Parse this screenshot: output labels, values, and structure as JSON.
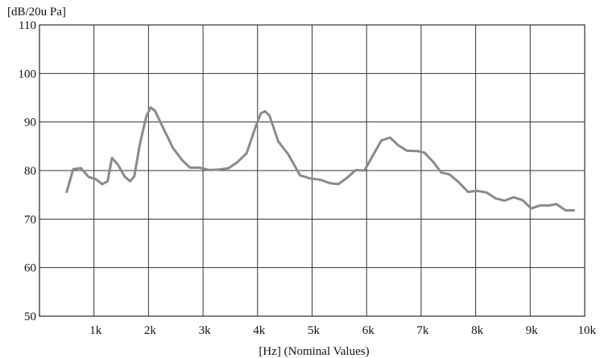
{
  "chart_data": {
    "type": "line",
    "ylabel": "[dB/20u Pa]",
    "xlabel": "[Hz] (Nominal Values)",
    "xlim": [
      0,
      10000
    ],
    "ylim": [
      50,
      110
    ],
    "grid": true,
    "x_ticks": [
      {
        "value": 1000,
        "label": "1k"
      },
      {
        "value": 2000,
        "label": "2k"
      },
      {
        "value": 3000,
        "label": "3k"
      },
      {
        "value": 4000,
        "label": "4k"
      },
      {
        "value": 5000,
        "label": "5k"
      },
      {
        "value": 6000,
        "label": "6k"
      },
      {
        "value": 7000,
        "label": "7k"
      },
      {
        "value": 8000,
        "label": "8k"
      },
      {
        "value": 9000,
        "label": "9k"
      },
      {
        "value": 10000,
        "label": "10k"
      }
    ],
    "y_ticks": [
      {
        "value": 50,
        "label": "50"
      },
      {
        "value": 60,
        "label": "60"
      },
      {
        "value": 70,
        "label": "70"
      },
      {
        "value": 80,
        "label": "80"
      },
      {
        "value": 90,
        "label": "90"
      },
      {
        "value": 100,
        "label": "100"
      },
      {
        "value": 110,
        "label": "110"
      }
    ],
    "series": [
      {
        "color": "#8a8a8a",
        "x": [
          500,
          620,
          760,
          900,
          1040,
          1150,
          1250,
          1330,
          1440,
          1560,
          1660,
          1740,
          1840,
          1960,
          2040,
          2120,
          2280,
          2450,
          2620,
          2760,
          2940,
          3120,
          3300,
          3470,
          3640,
          3800,
          3960,
          4060,
          4140,
          4220,
          4380,
          4560,
          4780,
          4960,
          5150,
          5330,
          5480,
          5640,
          5800,
          5960,
          6120,
          6270,
          6430,
          6580,
          6740,
          6940,
          7060,
          7220,
          7370,
          7520,
          7690,
          7860,
          8030,
          8200,
          8360,
          8530,
          8700,
          8860,
          9020,
          9180,
          9350,
          9480,
          9650,
          9800
        ],
        "y": [
          75.6,
          80.3,
          80.5,
          78.7,
          78.2,
          77.2,
          77.8,
          82.6,
          81.2,
          78.8,
          77.8,
          78.8,
          85.4,
          91.2,
          93.0,
          92.3,
          88.5,
          84.6,
          82.1,
          80.6,
          80.6,
          80.1,
          80.2,
          80.5,
          81.8,
          83.6,
          88.9,
          91.8,
          92.2,
          91.3,
          86.0,
          83.4,
          79.0,
          78.4,
          78.1,
          77.4,
          77.2,
          78.5,
          80.1,
          80.0,
          83.2,
          86.2,
          86.8,
          85.2,
          84.1,
          84.0,
          83.7,
          81.8,
          79.6,
          79.2,
          77.6,
          75.6,
          75.8,
          75.5,
          74.3,
          73.8,
          74.5,
          73.9,
          72.2,
          72.8,
          72.8,
          73.1,
          71.8,
          71.8
        ]
      }
    ]
  }
}
